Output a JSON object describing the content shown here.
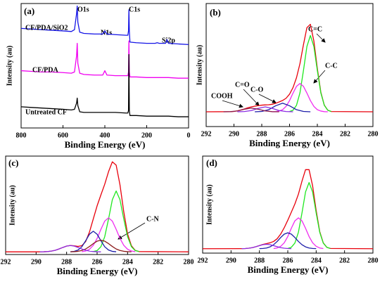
{
  "chart_data": [
    {
      "type": "line",
      "panel_label": "(a)",
      "xlabel": "Binding Energy (eV)",
      "ylabel": "Intensity (au)",
      "xlim": [
        800,
        0
      ],
      "xticks": [
        800,
        600,
        400,
        200,
        0
      ],
      "ylim": [
        0,
        100
      ],
      "annotations": [
        "O1s",
        "N1s",
        "C1s",
        "Si2p"
      ],
      "x": [
        800,
        750,
        700,
        650,
        600,
        560,
        545,
        535,
        532,
        529,
        520,
        500,
        450,
        410,
        400,
        390,
        350,
        300,
        290,
        287,
        285,
        283,
        280,
        250,
        200,
        160,
        150,
        140,
        110,
        103,
        96,
        50,
        0
      ],
      "series": [
        {
          "name": "CF/PDA/SiO2",
          "color": "#1414e6",
          "values": [
            80,
            79.5,
            79,
            78.5,
            78,
            77.5,
            79,
            92,
            98,
            85,
            77,
            76,
            75.5,
            75.5,
            78,
            75.5,
            75,
            74.5,
            74.5,
            78,
            95,
            78,
            69,
            68.5,
            68,
            68,
            68.5,
            68,
            68,
            71,
            68,
            67.5,
            67
          ]
        },
        {
          "name": "CF/PDA",
          "color": "#f000f0",
          "values": [
            46,
            45.5,
            45,
            45,
            44.5,
            44,
            45,
            58,
            68,
            52,
            44,
            43,
            42.5,
            42.5,
            46,
            42.5,
            42,
            42,
            42,
            45,
            70,
            45,
            41,
            41,
            40.5,
            40.5,
            40.5,
            40.5,
            40.5,
            40.5,
            40.5,
            40,
            40
          ]
        },
        {
          "name": "Untreated CF",
          "color": "#000000",
          "values": [
            17,
            16.5,
            16,
            15.5,
            15,
            14.5,
            15,
            20,
            24,
            18,
            13,
            12.5,
            12.5,
            12.5,
            12.5,
            12.5,
            12.5,
            12,
            12,
            14,
            59,
            14,
            10,
            10,
            9.5,
            9.5,
            9.5,
            9.5,
            9.5,
            9.5,
            9.5,
            9,
            9
          ]
        }
      ]
    },
    {
      "type": "line",
      "panel_label": "(b)",
      "xlabel": "Binding Energy (eV)",
      "ylabel": "Intensity (au)",
      "xlim": [
        292,
        280
      ],
      "xticks": [
        292,
        290,
        288,
        286,
        284,
        282,
        280
      ],
      "ylim": [
        0,
        100
      ],
      "series": [
        {
          "color": "#e8000b",
          "x": [
            292,
            290.25,
            290,
            289.75,
            289.5,
            289.25,
            289,
            288.75,
            288.5,
            288.25,
            288,
            287.75,
            287.5,
            287.25,
            287,
            286.75,
            286.5,
            286.25,
            286,
            285.75,
            285.5,
            285.25,
            285,
            284.75,
            284.5,
            284.25,
            284,
            283.75,
            283.5,
            283.25,
            283,
            280
          ],
          "values": [
            12,
            12.1,
            12.3,
            12.8,
            13.5,
            14.3,
            15.3,
            16.0,
            16.6,
            17.0,
            17.4,
            17.6,
            17.7,
            18.1,
            18.9,
            20.0,
            21.2,
            23.0,
            26.3,
            31.7,
            39.7,
            51.2,
            66.5,
            80.4,
            83.1,
            69.5,
            47.2,
            28.0,
            17.4,
            13.3,
            12.2,
            12
          ]
        },
        {
          "name": "C=C",
          "color": "#1ee81e",
          "x": [
            286,
            285.75,
            285.5,
            285.25,
            285,
            284.75,
            284.5,
            284.25,
            284,
            283.75,
            283.5,
            283.25,
            283
          ],
          "values": [
            12.2,
            13.3,
            17.3,
            27.4,
            45.5,
            65.1,
            74,
            65.1,
            45.5,
            27.4,
            17.3,
            13.3,
            12.2
          ]
        },
        {
          "name": "C-C",
          "color": "#f02cf0",
          "x": [
            287.25,
            287,
            286.75,
            286.5,
            286.25,
            286,
            285.75,
            285.5,
            285.25,
            285,
            284.75,
            284.5,
            284.25,
            284,
            283.75,
            283.5,
            283.25
          ],
          "values": [
            12.0,
            12.1,
            12.6,
            13.7,
            16.4,
            21.1,
            27.2,
            32.7,
            35,
            32.7,
            27.2,
            21.1,
            16.4,
            13.7,
            12.6,
            12.1,
            12.0
          ]
        },
        {
          "name": "C-O",
          "color": "#1c1ca8",
          "x": [
            288.5,
            288,
            287.5,
            287,
            286.5,
            286,
            285.5,
            285,
            284.5
          ],
          "values": [
            12.0,
            12.3,
            13.7,
            16.9,
            19,
            16.9,
            13.7,
            12.3,
            12.0
          ]
        },
        {
          "name": "C=O",
          "color": "#8a2be2",
          "x": [
            289.75,
            289.25,
            288.75,
            288.25,
            287.75,
            287.25,
            286.75,
            286.25,
            285.75
          ],
          "values": [
            12.0,
            12.2,
            13.0,
            14.8,
            16,
            14.8,
            13.0,
            12.2,
            12.0
          ]
        },
        {
          "name": "COOH",
          "color": "#8b1a4a",
          "x": [
            290.75,
            290.25,
            289.75,
            289.25,
            288.75,
            288.25,
            287.75,
            287.25,
            286.75
          ],
          "values": [
            12,
            12.1,
            12.7,
            14.1,
            15,
            14.1,
            12.7,
            12.1,
            12
          ]
        }
      ]
    },
    {
      "type": "line",
      "panel_label": "(c)",
      "xlabel": "Binding Energy (eV)",
      "ylabel": "Intensity (au)",
      "xlim": [
        292,
        280
      ],
      "xticks": [
        292,
        290,
        288,
        286,
        284,
        282,
        280
      ],
      "ylim": [
        0,
        110
      ],
      "series": [
        {
          "color": "#e8000b",
          "x": [
            292,
            289.75,
            289.5,
            289.25,
            289,
            288.75,
            288.5,
            288.25,
            288,
            287.75,
            287.5,
            287.25,
            287,
            286.75,
            286.5,
            286.25,
            286,
            285.75,
            285.5,
            285.25,
            285,
            284.75,
            284.5,
            284.25,
            284,
            283.75,
            283.5,
            283.25,
            280
          ],
          "values": [
            3,
            3,
            3.1,
            3.3,
            3.8,
            4.7,
            6.2,
            7.9,
            9.4,
            10.1,
            9.7,
            9.0,
            9.9,
            14.5,
            25.1,
            39.8,
            54.4,
            66.7,
            78.5,
            92.6,
            103.6,
            99.9,
            77.9,
            47.6,
            23.0,
            9.8,
            4.6,
            3.3,
            3
          ]
        },
        {
          "color": "#1ee81e",
          "x": [
            286.25,
            286,
            285.75,
            285.5,
            285.25,
            285,
            284.75,
            284.5,
            284.25,
            284,
            283.75,
            283.5,
            283.25
          ],
          "values": [
            3.3,
            4.4,
            8.8,
            19.9,
            39.7,
            61.3,
            71,
            61.3,
            39.7,
            19.9,
            8.8,
            4.4,
            3.3
          ]
        },
        {
          "color": "#f02cf0",
          "x": [
            287,
            286.75,
            286.5,
            286.25,
            286,
            285.75,
            285.5,
            285.25,
            285,
            284.75,
            284.5,
            284.25,
            284,
            283.75,
            283.5
          ],
          "values": [
            3.2,
            3.9,
            5.9,
            10.3,
            18,
            28.2,
            37.3,
            41,
            37.3,
            28.2,
            18,
            10.3,
            5.9,
            3.9,
            3.2
          ]
        },
        {
          "color": "#1c1ca8",
          "x": [
            287.75,
            287.5,
            287.25,
            287,
            286.75,
            286.5,
            286.25,
            286,
            285.75,
            285.5,
            285.25,
            285,
            284.75
          ],
          "values": [
            3.1,
            3.5,
            5.0,
            8.7,
            15.4,
            22.7,
            26,
            22.7,
            15.4,
            8.7,
            5.0,
            3.5,
            3.1
          ]
        },
        {
          "name": "C-N",
          "color": "#8b1a1a",
          "x": [
            287.75,
            287.5,
            287.25,
            287,
            286.75,
            286.5,
            286.25,
            286,
            285.75,
            285.5,
            285.25,
            285,
            284.75,
            284.5,
            284.25,
            284,
            283.75
          ],
          "values": [
            3.05,
            3.2,
            3.6,
            4.5,
            6.2,
            9.0,
            12.2,
            14.9,
            16,
            14.9,
            12.2,
            9.0,
            6.2,
            4.5,
            3.6,
            3.2,
            3.05
          ]
        },
        {
          "color": "#8a2be2",
          "x": [
            289.75,
            289.5,
            289.25,
            289,
            288.75,
            288.5,
            288.25,
            288,
            287.75,
            287.5,
            287.25,
            287,
            286.75,
            286.5,
            286.25,
            286,
            285.75
          ],
          "values": [
            3,
            3.1,
            3.3,
            3.8,
            4.7,
            6.2,
            7.9,
            9.4,
            10,
            9.4,
            7.9,
            6.2,
            4.7,
            3.8,
            3.3,
            3.1,
            3
          ]
        }
      ]
    },
    {
      "type": "line",
      "panel_label": "(d)",
      "xlabel": "Binding Energy (eV)",
      "ylabel": "Intensity (au)",
      "xlim": [
        292,
        280
      ],
      "xticks": [
        292,
        290,
        288,
        286,
        284,
        282,
        280
      ],
      "ylim": [
        0,
        110
      ],
      "series": [
        {
          "color": "#e8000b",
          "x": [
            292,
            289.25,
            289,
            288.75,
            288.5,
            288.25,
            288,
            287.75,
            287.5,
            287.25,
            287,
            286.75,
            286.5,
            286.25,
            286,
            285.75,
            285.5,
            285.25,
            285,
            284.75,
            284.5,
            284.25,
            284,
            283.75,
            283.5,
            283.25,
            283,
            280
          ],
          "values": [
            5,
            5.1,
            5.2,
            5.6,
            6.2,
            7.3,
            8.6,
            9.9,
            10.8,
            11.7,
            13.2,
            16.3,
            21.6,
            28.8,
            37.3,
            46.4,
            55.7,
            66.9,
            81.6,
            94.6,
            94.6,
            76.3,
            48.3,
            24.5,
            11.6,
            6.6,
            5.3,
            5
          ]
        },
        {
          "color": "#1ee81e",
          "x": [
            286,
            285.75,
            285.5,
            285.25,
            285,
            284.75,
            284.5,
            284.25,
            284,
            283.75,
            283.5,
            283.25,
            283
          ],
          "values": [
            5.3,
            6.6,
            11.4,
            23.7,
            45.5,
            69.3,
            80,
            69.3,
            45.5,
            23.7,
            11.4,
            6.6,
            5.3
          ]
        },
        {
          "color": "#f02cf0",
          "x": [
            287,
            286.75,
            286.5,
            286.25,
            286,
            285.75,
            285.5,
            285.25,
            285,
            284.75,
            284.5,
            284.25,
            284,
            283.75,
            283.5
          ],
          "values": [
            5.2,
            5.8,
            7.7,
            11.7,
            18.8,
            28.2,
            36.6,
            40,
            36.6,
            28.2,
            18.8,
            11.7,
            7.7,
            5.8,
            5.2
          ]
        },
        {
          "color": "#1c1ca8",
          "x": [
            288,
            287.75,
            287.5,
            287.25,
            287,
            286.75,
            286.5,
            286.25,
            286,
            285.75,
            285.5,
            285.25,
            285,
            284.75,
            284.5,
            284.25,
            284
          ],
          "values": [
            5.1,
            5.3,
            5.8,
            7.1,
            9.5,
            13.2,
            17.7,
            21.5,
            23,
            21.5,
            17.7,
            13.2,
            9.5,
            7.1,
            5.8,
            5.3,
            5.1
          ]
        },
        {
          "color": "#8a2be2",
          "x": [
            289.25,
            289,
            288.75,
            288.5,
            288.25,
            288,
            287.75,
            287.5,
            287.25,
            287,
            286.75,
            286.5,
            286.25,
            286,
            285.75
          ],
          "values": [
            5.1,
            5.2,
            5.6,
            6.2,
            7.3,
            8.5,
            9.6,
            10,
            9.6,
            8.5,
            7.3,
            6.2,
            5.6,
            5.2,
            5.1
          ]
        }
      ]
    }
  ]
}
